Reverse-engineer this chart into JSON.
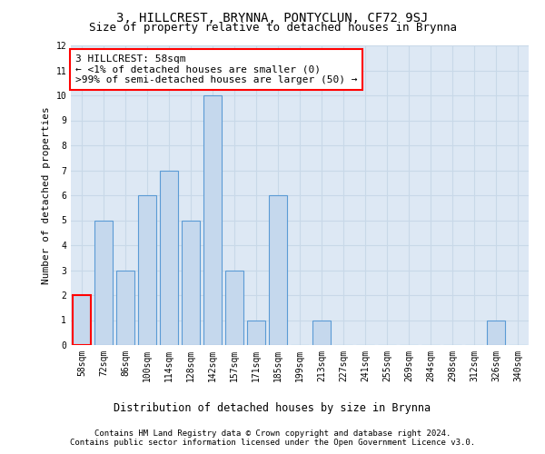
{
  "title": "3, HILLCREST, BRYNNA, PONTYCLUN, CF72 9SJ",
  "subtitle": "Size of property relative to detached houses in Brynna",
  "xlabel": "Distribution of detached houses by size in Brynna",
  "ylabel": "Number of detached properties",
  "categories": [
    "58sqm",
    "72sqm",
    "86sqm",
    "100sqm",
    "114sqm",
    "128sqm",
    "142sqm",
    "157sqm",
    "171sqm",
    "185sqm",
    "199sqm",
    "213sqm",
    "227sqm",
    "241sqm",
    "255sqm",
    "269sqm",
    "284sqm",
    "298sqm",
    "312sqm",
    "326sqm",
    "340sqm"
  ],
  "values": [
    2,
    5,
    3,
    6,
    7,
    5,
    10,
    3,
    1,
    6,
    0,
    1,
    0,
    0,
    0,
    0,
    0,
    0,
    0,
    1,
    0
  ],
  "bar_color": "#c5d8ed",
  "bar_edge_color": "#5b9bd5",
  "highlight_index": 0,
  "highlight_bar_edge_color": "#ff0000",
  "annotation_line1": "3 HILLCREST: 58sqm",
  "annotation_line2": "← <1% of detached houses are smaller (0)",
  "annotation_line3": ">99% of semi-detached houses are larger (50) →",
  "annotation_box_color": "#ffffff",
  "annotation_box_edge_color": "#ff0000",
  "ylim": [
    0,
    12
  ],
  "yticks": [
    0,
    1,
    2,
    3,
    4,
    5,
    6,
    7,
    8,
    9,
    10,
    11,
    12
  ],
  "grid_color": "#c8d8e8",
  "background_color": "#dde8f4",
  "footer_line1": "Contains HM Land Registry data © Crown copyright and database right 2024.",
  "footer_line2": "Contains public sector information licensed under the Open Government Licence v3.0.",
  "title_fontsize": 10,
  "subtitle_fontsize": 9,
  "xlabel_fontsize": 8.5,
  "ylabel_fontsize": 8,
  "tick_fontsize": 7,
  "annotation_fontsize": 8,
  "footer_fontsize": 6.5
}
